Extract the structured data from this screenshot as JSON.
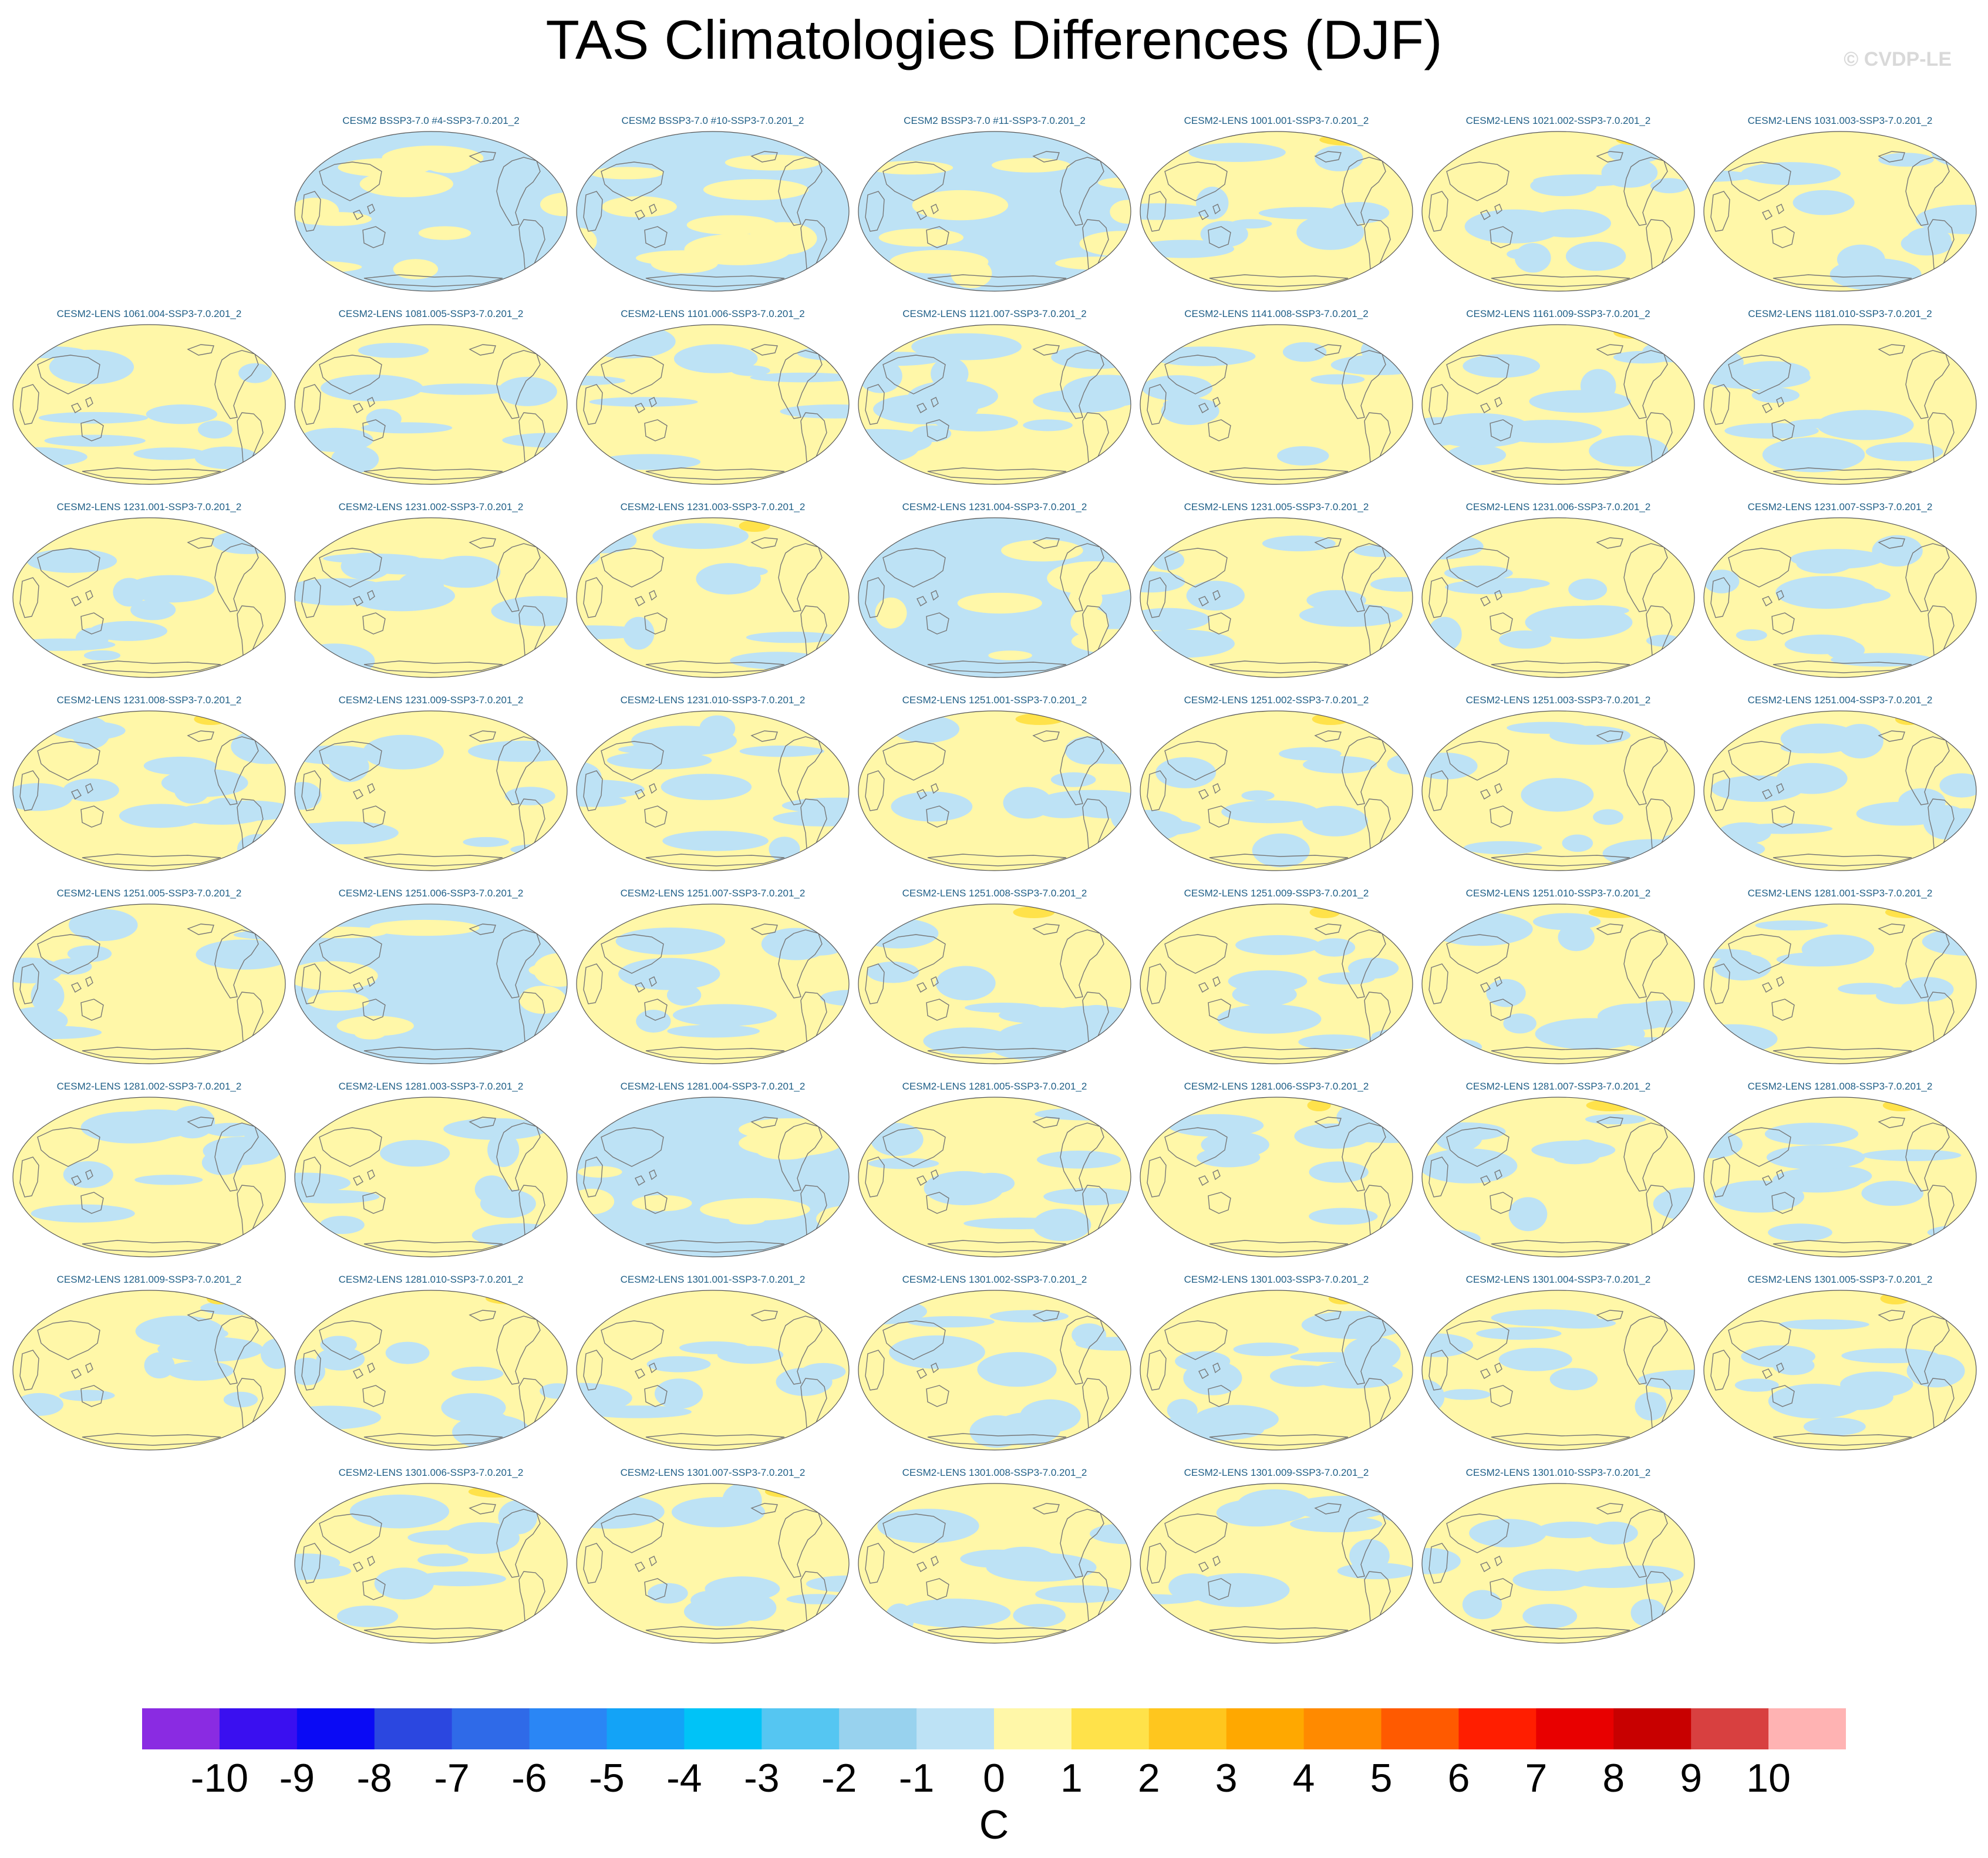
{
  "chart_data": {
    "type": "heatmap",
    "title": "TAS Climatologies Differences (DJF)",
    "watermark": "© CVDP-LE",
    "map_projection": "global Robinson, Pacific-centered",
    "panel_grid": "9 rows of up to 7 panels",
    "panels": [
      {
        "row": 0,
        "col": 1,
        "label": "CESM2 BSSP3-7.0 #4-SSP3-7.0.201_2",
        "dominant": "negative"
      },
      {
        "row": 0,
        "col": 2,
        "label": "CESM2 BSSP3-7.0 #10-SSP3-7.0.201_2",
        "dominant": "negative"
      },
      {
        "row": 0,
        "col": 3,
        "label": "CESM2 BSSP3-7.0 #11-SSP3-7.0.201_2",
        "dominant": "negative"
      },
      {
        "row": 0,
        "col": 4,
        "label": "CESM2-LENS 1001.001-SSP3-7.0.201_2",
        "dominant": "positive"
      },
      {
        "row": 0,
        "col": 5,
        "label": "CESM2-LENS 1021.002-SSP3-7.0.201_2",
        "dominant": "positive"
      },
      {
        "row": 0,
        "col": 6,
        "label": "CESM2-LENS 1031.003-SSP3-7.0.201_2",
        "dominant": "positive"
      },
      {
        "row": 1,
        "col": 0,
        "label": "CESM2-LENS 1061.004-SSP3-7.0.201_2",
        "dominant": "positive"
      },
      {
        "row": 1,
        "col": 1,
        "label": "CESM2-LENS 1081.005-SSP3-7.0.201_2",
        "dominant": "positive"
      },
      {
        "row": 1,
        "col": 2,
        "label": "CESM2-LENS 1101.006-SSP3-7.0.201_2",
        "dominant": "positive"
      },
      {
        "row": 1,
        "col": 3,
        "label": "CESM2-LENS 1121.007-SSP3-7.0.201_2",
        "dominant": "mixed"
      },
      {
        "row": 1,
        "col": 4,
        "label": "CESM2-LENS 1141.008-SSP3-7.0.201_2",
        "dominant": "positive"
      },
      {
        "row": 1,
        "col": 5,
        "label": "CESM2-LENS 1161.009-SSP3-7.0.201_2",
        "dominant": "positive"
      },
      {
        "row": 1,
        "col": 6,
        "label": "CESM2-LENS 1181.010-SSP3-7.0.201_2",
        "dominant": "positive"
      },
      {
        "row": 2,
        "col": 0,
        "label": "CESM2-LENS 1231.001-SSP3-7.0.201_2",
        "dominant": "positive"
      },
      {
        "row": 2,
        "col": 1,
        "label": "CESM2-LENS 1231.002-SSP3-7.0.201_2",
        "dominant": "positive"
      },
      {
        "row": 2,
        "col": 2,
        "label": "CESM2-LENS 1231.003-SSP3-7.0.201_2",
        "dominant": "positive"
      },
      {
        "row": 2,
        "col": 3,
        "label": "CESM2-LENS 1231.004-SSP3-7.0.201_2",
        "dominant": "negative"
      },
      {
        "row": 2,
        "col": 4,
        "label": "CESM2-LENS 1231.005-SSP3-7.0.201_2",
        "dominant": "positive"
      },
      {
        "row": 2,
        "col": 5,
        "label": "CESM2-LENS 1231.006-SSP3-7.0.201_2",
        "dominant": "positive"
      },
      {
        "row": 2,
        "col": 6,
        "label": "CESM2-LENS 1231.007-SSP3-7.0.201_2",
        "dominant": "positive"
      },
      {
        "row": 3,
        "col": 0,
        "label": "CESM2-LENS 1231.008-SSP3-7.0.201_2",
        "dominant": "mixed"
      },
      {
        "row": 3,
        "col": 1,
        "label": "CESM2-LENS 1231.009-SSP3-7.0.201_2",
        "dominant": "positive"
      },
      {
        "row": 3,
        "col": 2,
        "label": "CESM2-LENS 1231.010-SSP3-7.0.201_2",
        "dominant": "mixed"
      },
      {
        "row": 3,
        "col": 3,
        "label": "CESM2-LENS 1251.001-SSP3-7.0.201_2",
        "dominant": "positive"
      },
      {
        "row": 3,
        "col": 4,
        "label": "CESM2-LENS 1251.002-SSP3-7.0.201_2",
        "dominant": "positive"
      },
      {
        "row": 3,
        "col": 5,
        "label": "CESM2-LENS 1251.003-SSP3-7.0.201_2",
        "dominant": "positive"
      },
      {
        "row": 3,
        "col": 6,
        "label": "CESM2-LENS 1251.004-SSP3-7.0.201_2",
        "dominant": "mixed"
      },
      {
        "row": 4,
        "col": 0,
        "label": "CESM2-LENS 1251.005-SSP3-7.0.201_2",
        "dominant": "positive"
      },
      {
        "row": 4,
        "col": 1,
        "label": "CESM2-LENS 1251.006-SSP3-7.0.201_2",
        "dominant": "negative"
      },
      {
        "row": 4,
        "col": 2,
        "label": "CESM2-LENS 1251.007-SSP3-7.0.201_2",
        "dominant": "positive"
      },
      {
        "row": 4,
        "col": 3,
        "label": "CESM2-LENS 1251.008-SSP3-7.0.201_2",
        "dominant": "positive"
      },
      {
        "row": 4,
        "col": 4,
        "label": "CESM2-LENS 1251.009-SSP3-7.0.201_2",
        "dominant": "positive"
      },
      {
        "row": 4,
        "col": 5,
        "label": "CESM2-LENS 1251.010-SSP3-7.0.201_2",
        "dominant": "positive"
      },
      {
        "row": 4,
        "col": 6,
        "label": "CESM2-LENS 1281.001-SSP3-7.0.201_2",
        "dominant": "positive"
      },
      {
        "row": 5,
        "col": 0,
        "label": "CESM2-LENS 1281.002-SSP3-7.0.201_2",
        "dominant": "positive"
      },
      {
        "row": 5,
        "col": 1,
        "label": "CESM2-LENS 1281.003-SSP3-7.0.201_2",
        "dominant": "positive"
      },
      {
        "row": 5,
        "col": 2,
        "label": "CESM2-LENS 1281.004-SSP3-7.0.201_2",
        "dominant": "negative"
      },
      {
        "row": 5,
        "col": 3,
        "label": "CESM2-LENS 1281.005-SSP3-7.0.201_2",
        "dominant": "positive"
      },
      {
        "row": 5,
        "col": 4,
        "label": "CESM2-LENS 1281.006-SSP3-7.0.201_2",
        "dominant": "positive"
      },
      {
        "row": 5,
        "col": 5,
        "label": "CESM2-LENS 1281.007-SSP3-7.0.201_2",
        "dominant": "positive"
      },
      {
        "row": 5,
        "col": 6,
        "label": "CESM2-LENS 1281.008-SSP3-7.0.201_2",
        "dominant": "positive"
      },
      {
        "row": 6,
        "col": 0,
        "label": "CESM2-LENS 1281.009-SSP3-7.0.201_2",
        "dominant": "positive"
      },
      {
        "row": 6,
        "col": 1,
        "label": "CESM2-LENS 1281.010-SSP3-7.0.201_2",
        "dominant": "positive"
      },
      {
        "row": 6,
        "col": 2,
        "label": "CESM2-LENS 1301.001-SSP3-7.0.201_2",
        "dominant": "positive"
      },
      {
        "row": 6,
        "col": 3,
        "label": "CESM2-LENS 1301.002-SSP3-7.0.201_2",
        "dominant": "positive"
      },
      {
        "row": 6,
        "col": 4,
        "label": "CESM2-LENS 1301.003-SSP3-7.0.201_2",
        "dominant": "mixed"
      },
      {
        "row": 6,
        "col": 5,
        "label": "CESM2-LENS 1301.004-SSP3-7.0.201_2",
        "dominant": "positive"
      },
      {
        "row": 6,
        "col": 6,
        "label": "CESM2-LENS 1301.005-SSP3-7.0.201_2",
        "dominant": "positive"
      },
      {
        "row": 7,
        "col": 1,
        "label": "CESM2-LENS 1301.006-SSP3-7.0.201_2",
        "dominant": "positive"
      },
      {
        "row": 7,
        "col": 2,
        "label": "CESM2-LENS 1301.007-SSP3-7.0.201_2",
        "dominant": "positive"
      },
      {
        "row": 7,
        "col": 3,
        "label": "CESM2-LENS 1301.008-SSP3-7.0.201_2",
        "dominant": "positive"
      },
      {
        "row": 7,
        "col": 4,
        "label": "CESM2-LENS 1301.009-SSP3-7.0.201_2",
        "dominant": "positive"
      },
      {
        "row": 7,
        "col": 5,
        "label": "CESM2-LENS 1301.010-SSP3-7.0.201_2",
        "dominant": "positive"
      }
    ],
    "colorbar": {
      "units": "C",
      "tick_labels": [
        "-10",
        "-9",
        "-8",
        "-7",
        "-6",
        "-5",
        "-4",
        "-3",
        "-2",
        "-1",
        "0",
        "1",
        "2",
        "3",
        "4",
        "5",
        "6",
        "7",
        "8",
        "9",
        "10"
      ],
      "colors": [
        "#8a2be2",
        "#3a0ff0",
        "#0a0af5",
        "#2b47e0",
        "#2f6ae8",
        "#2a86f5",
        "#13a3f7",
        "#00c3f7",
        "#55c6f2",
        "#98d2ee",
        "#bde2f5",
        "#fff7a8",
        "#ffe24a",
        "#ffc61e",
        "#ffa800",
        "#ff8a00",
        "#ff5a00",
        "#ff1e00",
        "#e80000",
        "#c80000",
        "#d84040",
        "#ffb3b3"
      ]
    }
  }
}
